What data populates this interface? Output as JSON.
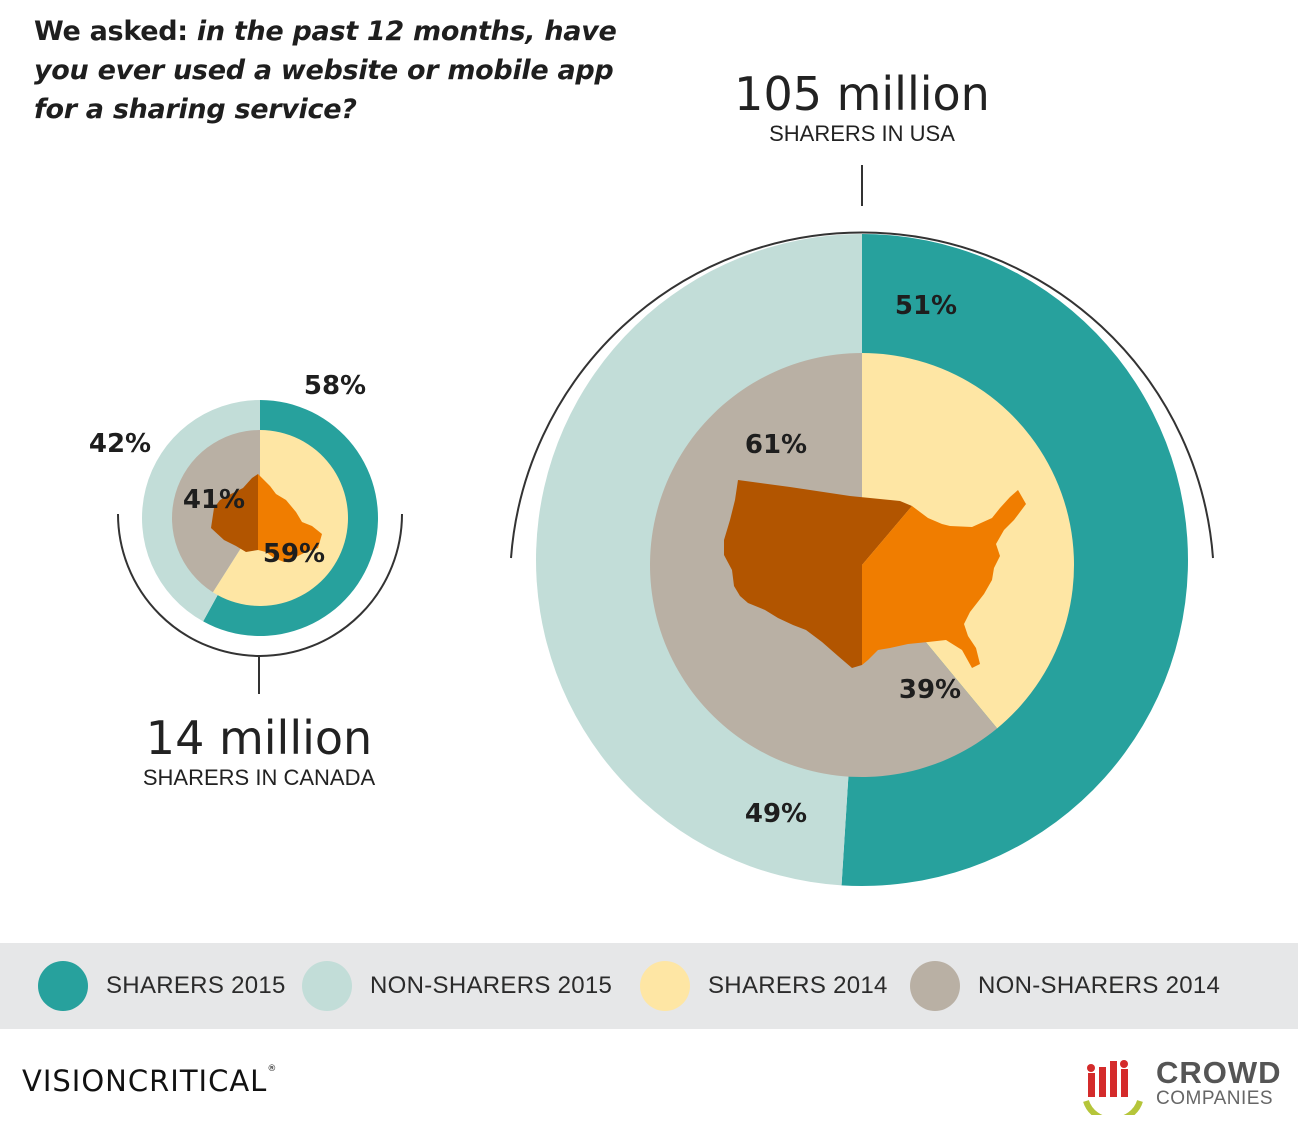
{
  "question": {
    "prefix": "We asked: ",
    "text": "in the past 12 months, have you ever used a website or mobile app for a sharing service?"
  },
  "chart_data": [
    {
      "type": "donut",
      "country": "Canada",
      "headline": "14 million",
      "subheadline": "SHARERS IN CANADA",
      "outer_ring": [
        {
          "label": "SHARERS 2015",
          "value": 58,
          "display": "58%",
          "color": "#27a19d"
        },
        {
          "label": "NON-SHARERS 2015",
          "value": 42,
          "display": "42%",
          "color": "#c2ddd8"
        }
      ],
      "inner_pie": [
        {
          "label": "SHARERS 2014",
          "value": 59,
          "display": "59%",
          "color": "#fee6a4"
        },
        {
          "label": "NON-SHARERS 2014",
          "value": 41,
          "display": "41%",
          "color": "#b9b0a4"
        }
      ]
    },
    {
      "type": "donut",
      "country": "USA",
      "headline": "105 million",
      "subheadline": "SHARERS IN USA",
      "outer_ring": [
        {
          "label": "SHARERS 2015",
          "value": 51,
          "display": "51%",
          "color": "#27a19d"
        },
        {
          "label": "NON-SHARERS 2015",
          "value": 49,
          "display": "49%",
          "color": "#c2ddd8"
        }
      ],
      "inner_pie": [
        {
          "label": "SHARERS 2014",
          "value": 39,
          "display": "39%",
          "color": "#fee6a4"
        },
        {
          "label": "NON-SHARERS 2014",
          "value": 61,
          "display": "61%",
          "color": "#b9b0a4"
        }
      ]
    }
  ],
  "legend": [
    {
      "label": "SHARERS 2015",
      "color": "#27a19d"
    },
    {
      "label": "NON-SHARERS 2015",
      "color": "#c2ddd8"
    },
    {
      "label": "SHARERS 2014",
      "color": "#fee6a4"
    },
    {
      "label": "NON-SHARERS 2014",
      "color": "#b9b0a4"
    }
  ],
  "colors": {
    "map_west": "#b25500",
    "map_east": "#f07d00",
    "arc": "#333333"
  },
  "logos": {
    "left": "VISIONCRITICAL",
    "left_mark": "®",
    "right_line1": "CROWD",
    "right_line2": "COMPANIES"
  }
}
